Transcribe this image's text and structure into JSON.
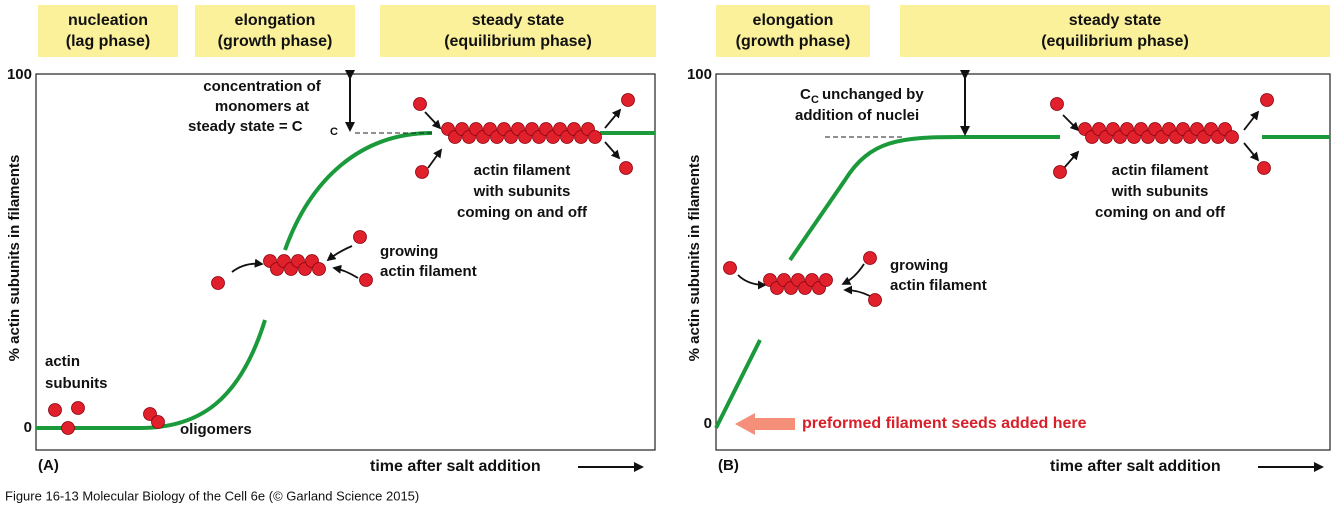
{
  "panels": [
    {
      "phases": [
        [
          "nucleation",
          "(lag phase)"
        ],
        [
          "elongation",
          "(growth phase)"
        ],
        [
          "steady state",
          "(equilibrium phase)"
        ]
      ],
      "y_axis_label": "% actin subunits in filaments",
      "y_top": "100",
      "y_bottom": "0",
      "x_axis_label": "time after salt addition",
      "panel_label": "(A)",
      "subunits_label": [
        "actin",
        "subunits"
      ],
      "oligomers_label": "oligomers",
      "growing_label": [
        "growing",
        "actin filament"
      ],
      "cc_label": [
        "concentration of",
        "monomers at",
        "steady state = C"
      ],
      "cc_subscript": "C",
      "filament_label": [
        "actin filament",
        "with subunits",
        "coming on and off"
      ]
    },
    {
      "phases": [
        [
          "elongation",
          "(growth phase)"
        ],
        [
          "steady state",
          "(equilibrium phase)"
        ]
      ],
      "y_axis_label": "% actin subunits in filaments",
      "y_top": "100",
      "y_bottom": "0",
      "x_axis_label": "time after salt addition",
      "panel_label": "(B)",
      "cc_symbol": "C",
      "cc_subscript": "C",
      "cc_label": [
        "unchanged by",
        "addition of nuclei"
      ],
      "growing_label": [
        "growing",
        "actin filament"
      ],
      "filament_label": [
        "actin filament",
        "with subunits",
        "coming on and off"
      ],
      "seeds_label": "preformed filament seeds added here"
    }
  ],
  "caption": "Figure 16-13  Molecular Biology of the Cell 6e (© Garland Science 2015)"
}
